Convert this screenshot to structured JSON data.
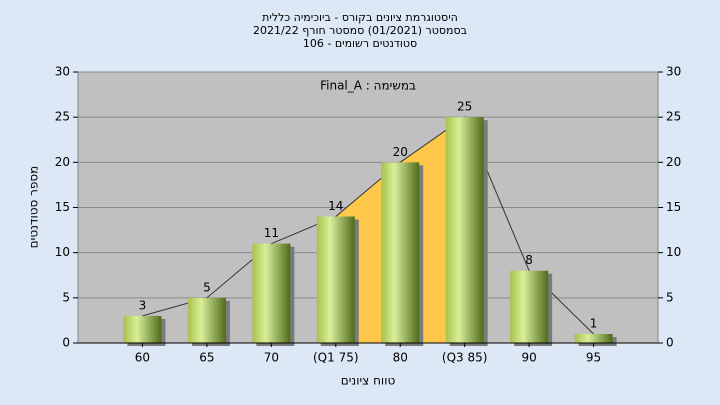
{
  "chart_data": {
    "type": "bar",
    "title": [
      "היסטוגרמת ציונים בקורס - ביוכימיה כללית",
      "בסמסטר (01/2021) סמסטר חורף 2021/22",
      "סטודנטים רשומים - 106"
    ],
    "annotation": "Final_A : במשימה",
    "x_label": "טווח ציונים",
    "y_label": "מספר סטודנטים",
    "categories": [
      "60",
      "65",
      "70",
      "(Q1 75)",
      "80",
      "(Q3 85)",
      "90",
      "95"
    ],
    "values": [
      3,
      5,
      11,
      14,
      20,
      25,
      8,
      1
    ],
    "ylim": [
      0,
      30
    ],
    "yticks": [
      0,
      5,
      10,
      15,
      20,
      25,
      30
    ],
    "y2lim": [
      0,
      30
    ],
    "y2ticks": [
      0,
      5,
      10,
      15,
      20,
      25,
      30
    ],
    "grid": true,
    "area_color": "#ffc84a"
  }
}
